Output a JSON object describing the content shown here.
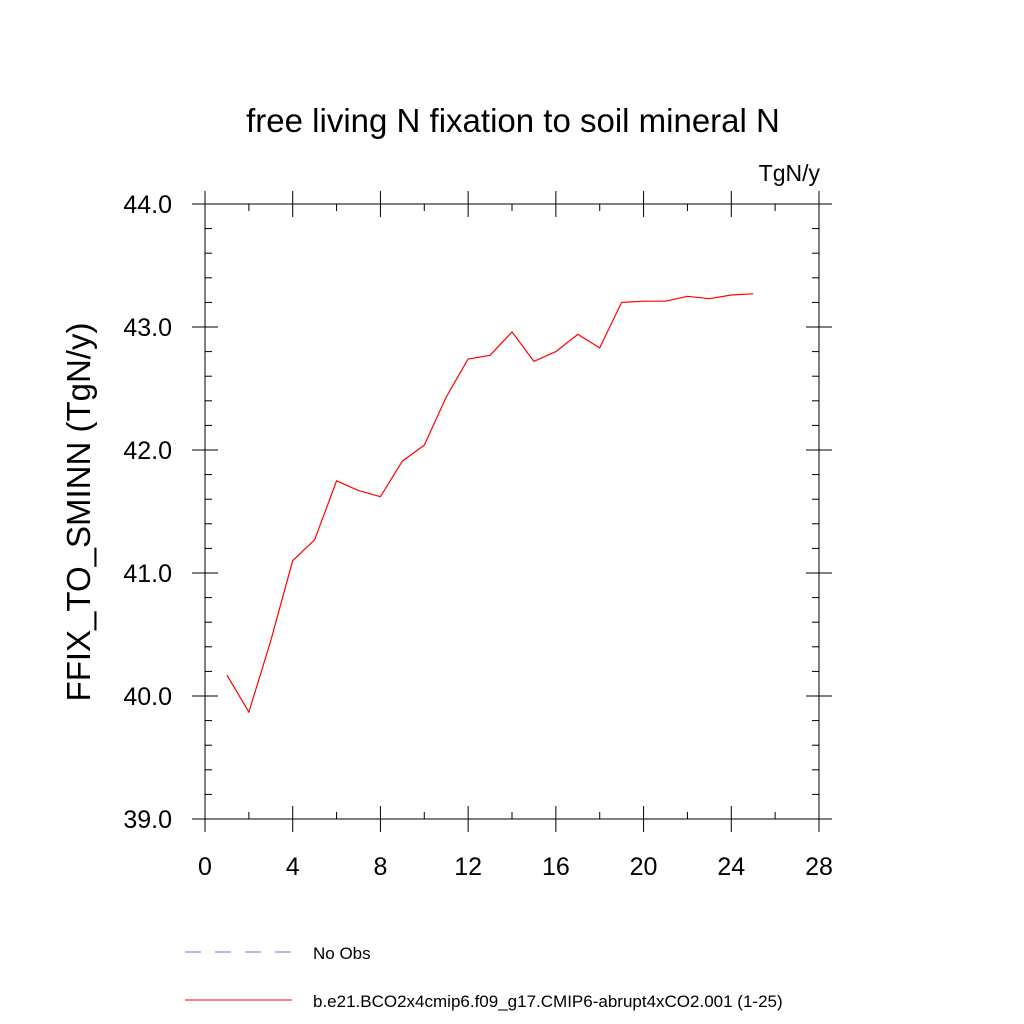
{
  "chart_data": {
    "type": "line",
    "title": "free living N fixation to soil mineral N",
    "units_label": "TgN/y",
    "ylabel": "FFIX_TO_SMINN  (TgN/y)",
    "xlabel": "",
    "xlim": [
      0,
      28
    ],
    "ylim": [
      39.0,
      44.0
    ],
    "x_ticks": [
      0,
      4,
      8,
      12,
      16,
      20,
      24,
      28
    ],
    "x_tick_labels": [
      "0",
      "4",
      "8",
      "12",
      "16",
      "20",
      "24",
      "28"
    ],
    "y_ticks": [
      39.0,
      40.0,
      41.0,
      42.0,
      43.0,
      44.0
    ],
    "y_tick_labels": [
      "39.0",
      "40.0",
      "41.0",
      "42.0",
      "43.0",
      "44.0"
    ],
    "x_minor_step": 2,
    "y_minor_step": 0.2,
    "series": [
      {
        "name": "b.e21.BCO2x4cmip6.f09_g17.CMIP6-abrupt4xCO2.001 (1-25)",
        "color": "#ff0000",
        "style": "solid",
        "x": [
          1,
          2,
          3,
          4,
          5,
          6,
          7,
          8,
          9,
          10,
          11,
          12,
          13,
          14,
          15,
          16,
          17,
          18,
          19,
          20,
          21,
          22,
          23,
          24,
          25
        ],
        "values": [
          40.17,
          39.87,
          40.45,
          41.1,
          41.27,
          41.75,
          41.67,
          41.62,
          41.91,
          42.04,
          42.43,
          42.74,
          42.77,
          42.96,
          42.72,
          42.8,
          42.94,
          42.83,
          43.2,
          43.21,
          43.21,
          43.25,
          43.23,
          43.26,
          43.27
        ]
      }
    ],
    "legend": [
      {
        "label": "No Obs",
        "color": "#7a6fd0",
        "style": "dashed"
      },
      {
        "label": "b.e21.BCO2x4cmip6.f09_g17.CMIP6-abrupt4xCO2.001 (1-25)",
        "color": "#ff0000",
        "style": "solid"
      }
    ],
    "legend_position": "bottom",
    "grid": false
  }
}
